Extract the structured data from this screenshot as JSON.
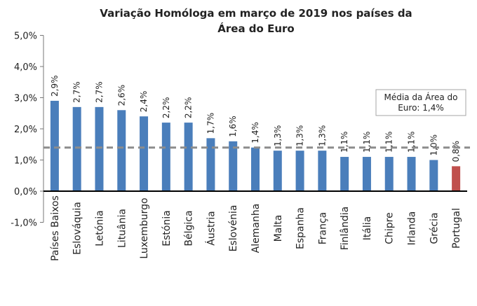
{
  "chart_data": {
    "type": "bar",
    "title_lines": [
      "Variação Homóloga em março de 2019 nos países da",
      "Área do Euro"
    ],
    "categories": [
      "Países Baixos",
      "Eslováquia",
      "Letónia",
      "Lituânia",
      "Luxemburgo",
      "Estónia",
      "Bélgica",
      "Áustria",
      "Eslovénia",
      "Alemanha",
      "Malta",
      "Espanha",
      "França",
      "Finlândia",
      "Itália",
      "Chipre",
      "Irlanda",
      "Grécia",
      "Portugal"
    ],
    "values": [
      2.9,
      2.7,
      2.7,
      2.6,
      2.4,
      2.2,
      2.2,
      1.7,
      1.6,
      1.4,
      1.3,
      1.3,
      1.3,
      1.1,
      1.1,
      1.1,
      1.1,
      1.0,
      0.8
    ],
    "value_labels": [
      "2,9%",
      "2,7%",
      "2,7%",
      "2,6%",
      "2,4%",
      "2,2%",
      "2,2%",
      "1,7%",
      "1,6%",
      "1,4%",
      "1,3%",
      "1,3%",
      "1,3%",
      "1,1%",
      "1,1%",
      "1,1%",
      "1,1%",
      "1,0%",
      "0,8%"
    ],
    "bar_color": "#4a7ebb",
    "highlight_color": "#c0504d",
    "highlight_category": "Portugal",
    "ylim": [
      -1.0,
      5.0
    ],
    "yticks": [
      -1.0,
      0.0,
      1.0,
      2.0,
      3.0,
      4.0,
      5.0
    ],
    "ytick_labels": [
      "-1,0%",
      "0,0%",
      "1,0%",
      "2,0%",
      "3,0%",
      "4,0%",
      "5,0%"
    ],
    "reference_line": {
      "value": 1.4,
      "style": "dashed",
      "color": "#8c8c8c",
      "label_lines": [
        "Média da Área do",
        "Euro: 1,4%"
      ]
    },
    "grid": false,
    "legend": "none"
  }
}
